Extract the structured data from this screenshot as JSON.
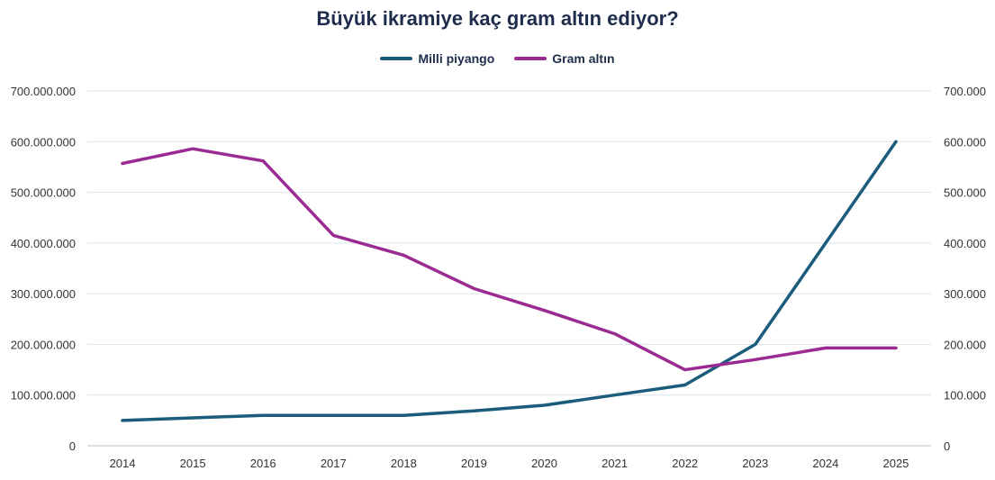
{
  "chart_data": {
    "type": "line",
    "title": "Büyük ikramiye kaç gram altın ediyor?",
    "categories": [
      "2014",
      "2015",
      "2016",
      "2017",
      "2018",
      "2019",
      "2020",
      "2021",
      "2022",
      "2023",
      "2024",
      "2025"
    ],
    "series": [
      {
        "name": "Milli piyango",
        "axis": "left",
        "color": "#1b5c7c",
        "values": [
          50000000,
          55000000,
          60000000,
          60000000,
          60000000,
          69000000,
          80000000,
          100000000,
          120000000,
          200000000,
          400000000,
          600000000
        ]
      },
      {
        "name": "Gram altın",
        "axis": "right",
        "color": "#9b2b92",
        "values": [
          557000,
          586000,
          562000,
          415000,
          376000,
          310000,
          267000,
          221000,
          150000,
          170000,
          193000,
          193000
        ]
      }
    ],
    "y_left": {
      "ylim": [
        0,
        700000000
      ],
      "ticks": [
        "0",
        "100.000.000",
        "200.000.000",
        "300.000.000",
        "400.000.000",
        "500.000.000",
        "600.000.000",
        "700.000.000"
      ]
    },
    "y_right": {
      "ylim": [
        0,
        700000
      ],
      "ticks": [
        "0",
        "100.000",
        "200.000",
        "300.000",
        "400.000",
        "500.000",
        "600.000",
        "700.000"
      ]
    },
    "grid": true,
    "legend_position": "top-center"
  }
}
